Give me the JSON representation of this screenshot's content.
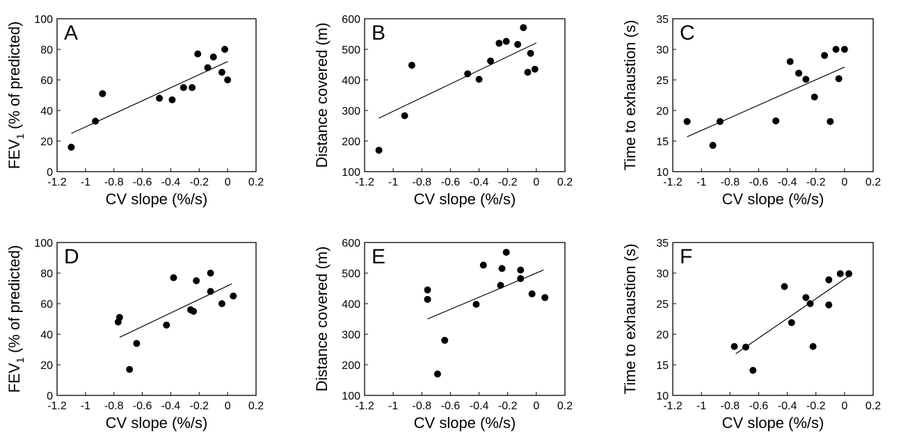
{
  "chart_data": [
    {
      "type": "scatter",
      "panel_label": "A",
      "xlabel": "CV slope (%/s)",
      "ylabel_main": "FEV",
      "ylabel_sub": "1",
      "ylabel_rest": " (% of predicted)",
      "xlim": [
        -1.2,
        0.2
      ],
      "ylim": [
        0,
        100
      ],
      "xticks": [
        -1.2,
        -1,
        -0.8,
        -0.6,
        -0.4,
        -0.2,
        0,
        0.2
      ],
      "xtick_labels": [
        "-1.2",
        "-1",
        "-0.8",
        "-0.6",
        "-0.4",
        "-0.2",
        "0",
        "0.2"
      ],
      "yticks": [
        0,
        20,
        40,
        60,
        80,
        100
      ],
      "ytick_labels": [
        "0",
        "20",
        "40",
        "60",
        "80",
        "100"
      ],
      "points": [
        [
          -1.1,
          16
        ],
        [
          -0.93,
          33
        ],
        [
          -0.88,
          51
        ],
        [
          -0.48,
          48
        ],
        [
          -0.39,
          47
        ],
        [
          -0.31,
          55
        ],
        [
          -0.25,
          55
        ],
        [
          -0.21,
          77
        ],
        [
          -0.14,
          68
        ],
        [
          -0.1,
          75
        ],
        [
          -0.04,
          65
        ],
        [
          -0.02,
          80
        ],
        [
          0,
          60
        ]
      ],
      "fit": [
        [
          -1.1,
          25
        ],
        [
          0,
          72
        ]
      ]
    },
    {
      "type": "scatter",
      "panel_label": "B",
      "xlabel": "CV slope (%/s)",
      "ylabel": "Distance covered (m)",
      "xlim": [
        -1.2,
        0.2
      ],
      "ylim": [
        100,
        600
      ],
      "xticks": [
        -1.2,
        -1,
        -0.8,
        -0.6,
        -0.4,
        -0.2,
        0,
        0.2
      ],
      "xtick_labels": [
        "-1.2",
        "-1",
        "-0.8",
        "-0.6",
        "-0.4",
        "-0.2",
        "0",
        "0.2"
      ],
      "yticks": [
        100,
        200,
        300,
        400,
        500,
        600
      ],
      "ytick_labels": [
        "100",
        "200",
        "300",
        "400",
        "500",
        "600"
      ],
      "points": [
        [
          -1.1,
          170
        ],
        [
          -0.92,
          283
        ],
        [
          -0.87,
          448
        ],
        [
          -0.48,
          420
        ],
        [
          -0.4,
          402
        ],
        [
          -0.32,
          462
        ],
        [
          -0.26,
          520
        ],
        [
          -0.21,
          526
        ],
        [
          -0.13,
          516
        ],
        [
          -0.09,
          571
        ],
        [
          -0.06,
          425
        ],
        [
          -0.04,
          487
        ],
        [
          -0.01,
          435
        ]
      ],
      "fit": [
        [
          -1.1,
          275
        ],
        [
          0,
          521
        ]
      ]
    },
    {
      "type": "scatter",
      "panel_label": "C",
      "xlabel": "CV slope (%/s)",
      "ylabel": "Time to exhaustion (s)",
      "xlim": [
        -1.2,
        0.2
      ],
      "ylim": [
        10,
        35
      ],
      "xticks": [
        -1.2,
        -1,
        -0.8,
        -0.6,
        -0.4,
        -0.2,
        0,
        0.2
      ],
      "xtick_labels": [
        "-1.2",
        "-1",
        "-0.8",
        "-0.6",
        "-0.4",
        "-0.2",
        "0",
        "0.2"
      ],
      "yticks": [
        10,
        15,
        20,
        25,
        30,
        35
      ],
      "ytick_labels": [
        "10",
        "15",
        "20",
        "25",
        "30",
        "35"
      ],
      "points": [
        [
          -1.1,
          18.2
        ],
        [
          -0.92,
          14.3
        ],
        [
          -0.87,
          18.2
        ],
        [
          -0.48,
          18.3
        ],
        [
          -0.38,
          28
        ],
        [
          -0.32,
          26.1
        ],
        [
          -0.27,
          25.1
        ],
        [
          -0.21,
          22.2
        ],
        [
          -0.14,
          29
        ],
        [
          -0.1,
          18.2
        ],
        [
          -0.06,
          30
        ],
        [
          -0.04,
          25.2
        ],
        [
          0,
          30
        ]
      ],
      "fit": [
        [
          -1.1,
          15.7
        ],
        [
          0,
          27.1
        ]
      ]
    },
    {
      "type": "scatter",
      "panel_label": "D",
      "xlabel": "CV slope (%/s)",
      "ylabel_main": "FEV",
      "ylabel_sub": "1",
      "ylabel_rest": " (% of predicted)",
      "xlim": [
        -1.2,
        0.2
      ],
      "ylim": [
        0,
        100
      ],
      "xticks": [
        -1.2,
        -1,
        -0.8,
        -0.6,
        -0.4,
        -0.2,
        0,
        0.2
      ],
      "xtick_labels": [
        "-1.2",
        "-1",
        "-0.8",
        "-0.6",
        "-0.4",
        "-0.2",
        "0",
        "0.2"
      ],
      "yticks": [
        0,
        20,
        40,
        60,
        80,
        100
      ],
      "ytick_labels": [
        "0",
        "20",
        "40",
        "60",
        "80",
        "100"
      ],
      "points": [
        [
          -0.77,
          48
        ],
        [
          -0.76,
          51
        ],
        [
          -0.69,
          17
        ],
        [
          -0.64,
          34
        ],
        [
          -0.43,
          46
        ],
        [
          -0.38,
          77
        ],
        [
          -0.26,
          56
        ],
        [
          -0.24,
          55
        ],
        [
          -0.22,
          75
        ],
        [
          -0.12,
          80
        ],
        [
          -0.12,
          68
        ],
        [
          -0.04,
          60
        ],
        [
          0.04,
          65
        ]
      ],
      "fit": [
        [
          -0.76,
          38
        ],
        [
          0.03,
          73
        ]
      ]
    },
    {
      "type": "scatter",
      "panel_label": "E",
      "xlabel": "CV slope (%/s)",
      "ylabel": "Distance covered (m)",
      "xlim": [
        -1.2,
        0.2
      ],
      "ylim": [
        100,
        600
      ],
      "xticks": [
        -1.2,
        -1,
        -0.8,
        -0.6,
        -0.4,
        -0.2,
        0,
        0.2
      ],
      "xtick_labels": [
        "-1.2",
        "-1",
        "-0.8",
        "-0.6",
        "-0.4",
        "-0.2",
        "0",
        "0.2"
      ],
      "yticks": [
        100,
        200,
        300,
        400,
        500,
        600
      ],
      "ytick_labels": [
        "100",
        "200",
        "300",
        "400",
        "500",
        "600"
      ],
      "points": [
        [
          -0.76,
          445
        ],
        [
          -0.76,
          414
        ],
        [
          -0.69,
          170
        ],
        [
          -0.64,
          280
        ],
        [
          -0.42,
          398
        ],
        [
          -0.37,
          526
        ],
        [
          -0.25,
          460
        ],
        [
          -0.24,
          515
        ],
        [
          -0.21,
          568
        ],
        [
          -0.11,
          510
        ],
        [
          -0.11,
          482
        ],
        [
          -0.03,
          432
        ],
        [
          0.06,
          420
        ]
      ],
      "fit": [
        [
          -0.76,
          350
        ],
        [
          0.05,
          510
        ]
      ]
    },
    {
      "type": "scatter",
      "panel_label": "F",
      "xlabel": "CV slope (%/s)",
      "ylabel": "Time to exhaustion (s)",
      "xlim": [
        -1.2,
        0.2
      ],
      "ylim": [
        10,
        35
      ],
      "xticks": [
        -1.2,
        -1,
        -0.8,
        -0.6,
        -0.4,
        -0.2,
        0,
        0.2
      ],
      "xtick_labels": [
        "-1.2",
        "-1",
        "-0.8",
        "-0.6",
        "-0.4",
        "-0.2",
        "0",
        "0.2"
      ],
      "yticks": [
        10,
        15,
        20,
        25,
        30,
        35
      ],
      "ytick_labels": [
        "10",
        "15",
        "20",
        "25",
        "30",
        "35"
      ],
      "points": [
        [
          -0.77,
          18
        ],
        [
          -0.69,
          17.9
        ],
        [
          -0.64,
          14.1
        ],
        [
          -0.42,
          27.8
        ],
        [
          -0.37,
          21.9
        ],
        [
          -0.27,
          26
        ],
        [
          -0.24,
          25
        ],
        [
          -0.22,
          18
        ],
        [
          -0.11,
          28.9
        ],
        [
          -0.11,
          24.8
        ],
        [
          -0.03,
          29.9
        ],
        [
          0.03,
          29.9
        ]
      ],
      "fit": [
        [
          -0.76,
          16.8
        ],
        [
          0.03,
          29.5
        ]
      ]
    }
  ]
}
